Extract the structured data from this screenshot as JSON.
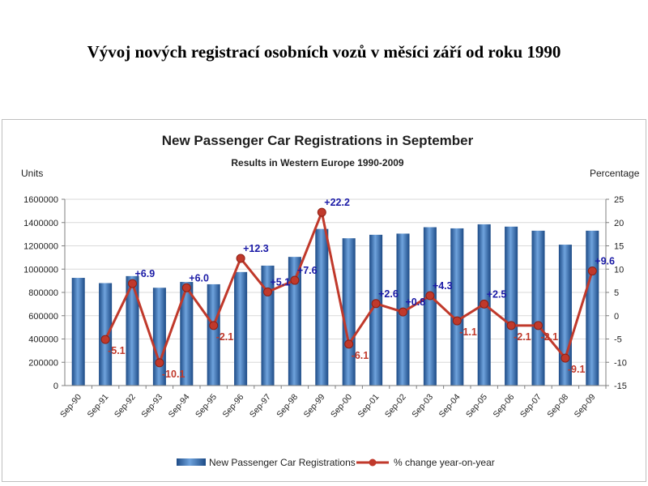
{
  "page_title": "Vývoj nových registrací osobních vozů v měsíci září od roku 1990",
  "colors": {
    "bar": "#2f6bb3",
    "bar_light": "#6fa3dd",
    "bar_dark": "#1d4b86",
    "line": "#c0392b",
    "label_positive": "#1a1aa6",
    "label_negative": "#c0392b"
  },
  "chart_data": {
    "type": "bar",
    "title": "New Passenger Car Registrations in September",
    "subtitle": "Results in Western Europe 1990-2009",
    "ylabel": "Units",
    "y2label": "Percentage",
    "ylim": [
      0,
      1600000
    ],
    "y2lim": [
      -15,
      25
    ],
    "yticks": [
      "0",
      "200000",
      "400000",
      "600000",
      "800000",
      "1000000",
      "1200000",
      "1400000",
      "1600000"
    ],
    "y2ticks": [
      "-15",
      "-10",
      "-5",
      "0",
      "5",
      "10",
      "15",
      "20",
      "25"
    ],
    "grid": true,
    "legend_position": "bottom",
    "categories": [
      "Sep-90",
      "Sep-91",
      "Sep-92",
      "Sep-93",
      "Sep-94",
      "Sep-95",
      "Sep-96",
      "Sep-97",
      "Sep-98",
      "Sep-99",
      "Sep-00",
      "Sep-01",
      "Sep-02",
      "Sep-03",
      "Sep-04",
      "Sep-05",
      "Sep-06",
      "Sep-07",
      "Sep-08",
      "Sep-09"
    ],
    "series": [
      {
        "name": "New Passenger Car Registrations",
        "type": "bar",
        "axis": "left",
        "values": [
          925000,
          880000,
          940000,
          840000,
          890000,
          870000,
          975000,
          1030000,
          1105000,
          1345000,
          1265000,
          1295000,
          1305000,
          1360000,
          1350000,
          1385000,
          1365000,
          1330000,
          1210000,
          1330000
        ]
      },
      {
        "name": "% change year-on-year",
        "type": "line",
        "axis": "right",
        "values": [
          null,
          -5.1,
          6.9,
          -10.1,
          6.0,
          -2.1,
          12.3,
          5.1,
          7.6,
          22.2,
          -6.1,
          2.6,
          0.8,
          4.3,
          -1.1,
          2.5,
          -2.1,
          -2.1,
          -9.1,
          9.6
        ],
        "labels": [
          "",
          "-5.1",
          "+6.9",
          "-10.1",
          "+6.0",
          "-2.1",
          "+12.3",
          "+5.1",
          "+7.6",
          "+22.2",
          "-6.1",
          "+2.6",
          "+0.8",
          "+4.3",
          "-1.1",
          "+2.5",
          "-2.1",
          "-2.1",
          "-9.1",
          "+9.6"
        ]
      }
    ]
  }
}
